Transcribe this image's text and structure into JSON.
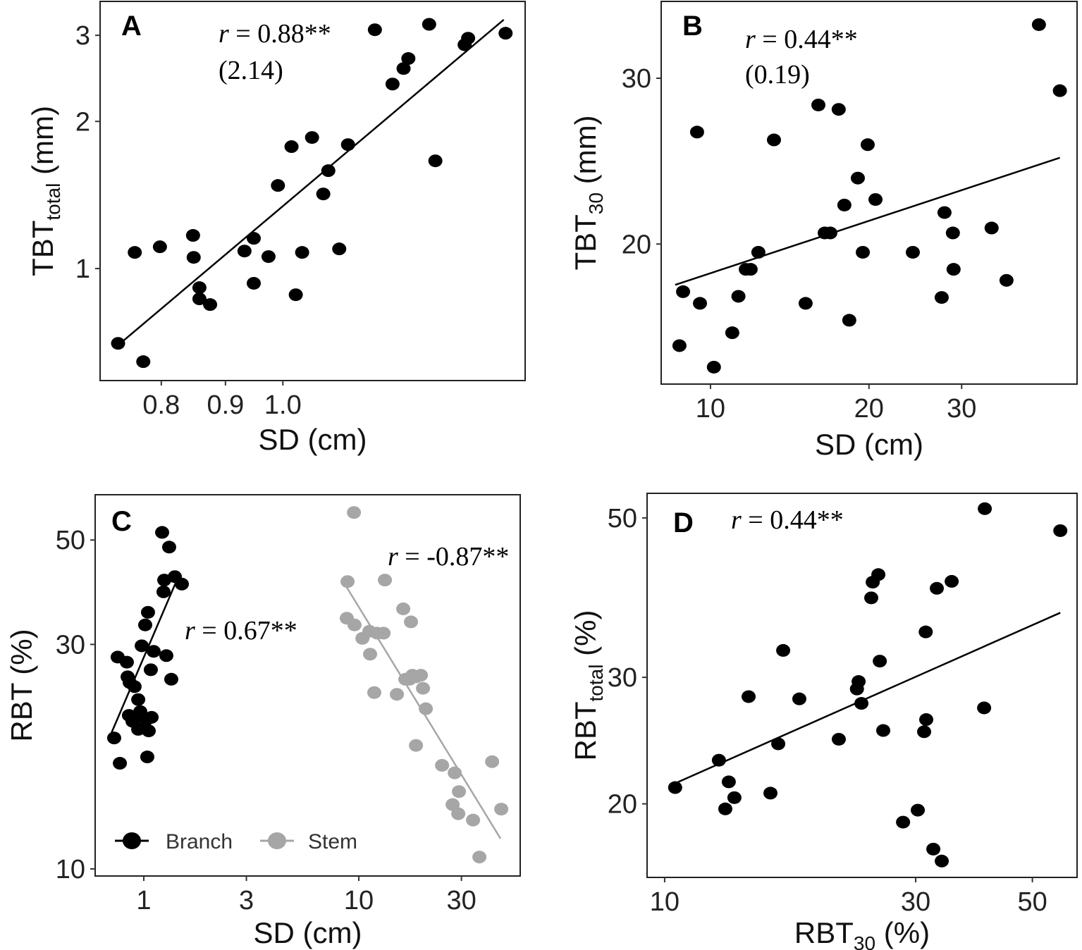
{
  "colors": {
    "branch": "#000000",
    "stem": "#a6a6a6",
    "fit": "#000000"
  },
  "chart_data": [
    {
      "type": "scatter",
      "panel": "A",
      "xscale": "log",
      "yscale": "log",
      "xlabel": "SD (cm)",
      "ylabel": {
        "main": "TBT",
        "sub": "total",
        "unit": " (mm)"
      },
      "xlim": [
        0.715,
        1.56
      ],
      "ylim": [
        0.59,
        3.52
      ],
      "xticks": [
        {
          "v": 0.8,
          "label": "0.8"
        },
        {
          "v": 0.9,
          "label": "0.9"
        },
        {
          "v": 1.0,
          "label": "1.0"
        }
      ],
      "yticks": [
        {
          "v": 1,
          "label": "1"
        },
        {
          "v": 2,
          "label": "2"
        },
        {
          "v": 3,
          "label": "3"
        }
      ],
      "annotations": {
        "r_symbol": "r",
        "r_value": " = 0.88**",
        "extra": "(2.14)"
      },
      "series": [
        {
          "name": "all",
          "color": "#000000",
          "points": [
            [
              0.739,
              0.703
            ],
            [
              0.774,
              0.645
            ],
            [
              0.762,
              1.079
            ],
            [
              0.798,
              1.108
            ],
            [
              0.848,
              1.169
            ],
            [
              0.849,
              1.054
            ],
            [
              0.858,
              0.914
            ],
            [
              0.858,
              0.867
            ],
            [
              0.875,
              0.844
            ],
            [
              0.932,
              1.086
            ],
            [
              0.948,
              1.153
            ],
            [
              0.948,
              0.933
            ],
            [
              0.974,
              1.058
            ],
            [
              0.991,
              1.479
            ],
            [
              1.016,
              1.776
            ],
            [
              1.024,
              0.884
            ],
            [
              1.036,
              1.079
            ],
            [
              1.055,
              1.854
            ],
            [
              1.077,
              1.421
            ],
            [
              1.087,
              1.586
            ],
            [
              1.109,
              1.097
            ],
            [
              1.127,
              1.793
            ],
            [
              1.184,
              3.08
            ],
            [
              1.223,
              2.385
            ],
            [
              1.248,
              2.566
            ],
            [
              1.259,
              2.69
            ],
            [
              1.308,
              3.16
            ],
            [
              1.323,
              1.661
            ],
            [
              1.396,
              2.87
            ],
            [
              1.405,
              2.96
            ],
            [
              1.505,
              3.03
            ]
          ],
          "fit": [
            [
              0.739,
              0.697
            ],
            [
              1.5,
              3.23
            ]
          ]
        }
      ]
    },
    {
      "type": "scatter",
      "panel": "B",
      "xscale": "log",
      "yscale": "log",
      "xlabel": "SD (cm)",
      "ylabel": {
        "main": "TBT",
        "sub": "30",
        "unit": " (mm)"
      },
      "xlim": [
        8.06,
        49.7
      ],
      "ylim": [
        14.2,
        36.2
      ],
      "xticks": [
        {
          "v": 10,
          "label": "10"
        },
        {
          "v": 20,
          "label": "20"
        },
        {
          "v": 30,
          "label": "30"
        }
      ],
      "yticks": [
        {
          "v": 20,
          "label": "20"
        },
        {
          "v": 30,
          "label": "30"
        }
      ],
      "annotations": {
        "r_symbol": "r",
        "r_value": " = 0.44**",
        "extra": "(0.19)"
      },
      "series": [
        {
          "name": "all",
          "color": "#000000",
          "points": [
            [
              8.73,
              15.6
            ],
            [
              8.87,
              17.8
            ],
            [
              9.55,
              17.3
            ],
            [
              9.43,
              26.3
            ],
            [
              10.15,
              14.8
            ],
            [
              11.0,
              16.1
            ],
            [
              11.3,
              17.6
            ],
            [
              11.67,
              18.8
            ],
            [
              11.92,
              18.8
            ],
            [
              12.33,
              19.6
            ],
            [
              13.2,
              25.8
            ],
            [
              15.16,
              17.3
            ],
            [
              16.03,
              28.1
            ],
            [
              16.48,
              20.55
            ],
            [
              16.89,
              20.55
            ],
            [
              17.52,
              27.8
            ],
            [
              17.96,
              22.0
            ],
            [
              18.35,
              16.6
            ],
            [
              19.05,
              23.5
            ],
            [
              19.47,
              19.6
            ],
            [
              19.89,
              25.5
            ],
            [
              20.58,
              22.3
            ],
            [
              24.23,
              19.6
            ],
            [
              27.83,
              21.6
            ],
            [
              27.49,
              17.55
            ],
            [
              28.87,
              20.55
            ],
            [
              28.96,
              18.8
            ],
            [
              34.2,
              20.8
            ],
            [
              36.5,
              18.3
            ],
            [
              42.06,
              34.2
            ],
            [
              46.1,
              29.1
            ]
          ],
          "fit": [
            [
              8.57,
              18.1
            ],
            [
              46.1,
              24.7
            ]
          ]
        }
      ]
    },
    {
      "type": "scatter",
      "panel": "C",
      "xscale": "log",
      "yscale": "log",
      "xlabel": "SD (cm)",
      "ylabel": {
        "main": "RBT",
        "sub": "",
        "unit": " (%)"
      },
      "xlim": [
        0.594,
        56.3
      ],
      "ylim": [
        9.66,
        62.4
      ],
      "xticks": [
        {
          "v": 1,
          "label": "1"
        },
        {
          "v": 3,
          "label": "3"
        },
        {
          "v": 10,
          "label": "10"
        },
        {
          "v": 30,
          "label": "30"
        }
      ],
      "yticks": [
        {
          "v": 10,
          "label": "10"
        },
        {
          "v": 30,
          "label": "30"
        },
        {
          "v": 50,
          "label": "50"
        }
      ],
      "legend": {
        "position": "bottom-left",
        "items": [
          "Branch",
          "Stem"
        ]
      },
      "annotations": {
        "branch_r_symbol": "r",
        "branch_r_value": " = 0.67**",
        "stem_r_symbol": "r",
        "stem_r_value": " = -0.87**"
      },
      "series": [
        {
          "name": "Branch",
          "color": "#000000",
          "points": [
            [
              0.728,
              18.98
            ],
            [
              0.774,
              16.77
            ],
            [
              0.756,
              28.2
            ],
            [
              0.834,
              27.5
            ],
            [
              0.841,
              25.6
            ],
            [
              0.86,
              24.9
            ],
            [
              0.906,
              24.4
            ],
            [
              0.853,
              21.2
            ],
            [
              0.927,
              21.05
            ],
            [
              0.886,
              20.6
            ],
            [
              0.942,
              19.8
            ],
            [
              0.963,
              21.6
            ],
            [
              1.023,
              20.7
            ],
            [
              1.038,
              17.3
            ],
            [
              1.054,
              19.65
            ],
            [
              1.087,
              21.0
            ],
            [
              0.978,
              29.8
            ],
            [
              1.078,
              26.5
            ],
            [
              1.111,
              29.0
            ],
            [
              1.015,
              33.0
            ],
            [
              1.046,
              35.1
            ],
            [
              1.217,
              51.9
            ],
            [
              1.312,
              48.3
            ],
            [
              1.245,
              41.1
            ],
            [
              1.235,
              38.8
            ],
            [
              1.394,
              41.8
            ],
            [
              1.503,
              40.3
            ],
            [
              1.273,
              28.4
            ],
            [
              1.342,
              25.3
            ],
            [
              0.942,
              22.9
            ]
          ],
          "fit": [
            [
              0.707,
              19.45
            ],
            [
              1.447,
              41.8
            ]
          ]
        },
        {
          "name": "Stem",
          "color": "#a6a6a6",
          "points": [
            [
              9.49,
              57.2
            ],
            [
              8.86,
              40.8
            ],
            [
              8.79,
              34.1
            ],
            [
              9.55,
              33.0
            ],
            [
              10.39,
              30.9
            ],
            [
              11.2,
              32.0
            ],
            [
              11.28,
              28.6
            ],
            [
              12.17,
              31.7
            ],
            [
              13.22,
              41.1
            ],
            [
              16.09,
              35.7
            ],
            [
              17.48,
              33.5
            ],
            [
              11.8,
              23.7
            ],
            [
              15.03,
              23.5
            ],
            [
              16.46,
              25.3
            ],
            [
              17.75,
              25.8
            ],
            [
              18.44,
              25.6
            ],
            [
              19.44,
              25.8
            ],
            [
              19.88,
              24.2
            ],
            [
              20.49,
              21.9
            ],
            [
              18.44,
              18.3
            ],
            [
              24.38,
              16.6
            ],
            [
              27.92,
              16.0
            ],
            [
              29.21,
              14.6
            ],
            [
              27.3,
              13.7
            ],
            [
              29.0,
              13.1
            ],
            [
              33.97,
              12.7
            ],
            [
              36.37,
              10.6
            ],
            [
              41.67,
              16.9
            ],
            [
              45.95,
              13.4
            ],
            [
              13.03,
              31.7
            ],
            [
              17.22,
              25.3
            ]
          ],
          "fit": [
            [
              8.66,
              40.1
            ],
            [
              45.6,
              11.6
            ]
          ]
        }
      ]
    },
    {
      "type": "scatter",
      "panel": "D",
      "xscale": "log",
      "yscale": "log",
      "xlabel": {
        "main": "RBT",
        "sub": "30",
        "unit": " (%)"
      },
      "ylabel": {
        "main": "RBT",
        "sub": "total",
        "unit": " (%)"
      },
      "xlim": [
        9.26,
        60.8
      ],
      "ylim": [
        15.8,
        54.1
      ],
      "xticks": [
        {
          "v": 10,
          "label": "10"
        },
        {
          "v": 30,
          "label": "30"
        },
        {
          "v": 50,
          "label": "50"
        }
      ],
      "yticks": [
        {
          "v": 20,
          "label": "20"
        },
        {
          "v": 30,
          "label": "30"
        },
        {
          "v": 50,
          "label": "50"
        }
      ],
      "annotations": {
        "r_symbol": "r",
        "r_value": " = 0.44**"
      },
      "series": [
        {
          "name": "all",
          "color": "#000000",
          "points": [
            [
              10.47,
              21.07
            ],
            [
              12.68,
              23.0
            ],
            [
              13.24,
              21.46
            ],
            [
              13.57,
              20.4
            ],
            [
              13.04,
              19.68
            ],
            [
              14.44,
              28.2
            ],
            [
              15.89,
              20.7
            ],
            [
              16.44,
              24.24
            ],
            [
              16.8,
              32.7
            ],
            [
              18.03,
              28.0
            ],
            [
              21.43,
              24.6
            ],
            [
              23.2,
              28.9
            ],
            [
              23.37,
              29.6
            ],
            [
              23.66,
              27.6
            ],
            [
              24.7,
              38.7
            ],
            [
              24.86,
              40.7
            ],
            [
              25.48,
              41.7
            ],
            [
              25.64,
              31.6
            ],
            [
              26.03,
              25.3
            ],
            [
              28.39,
              18.86
            ],
            [
              30.28,
              19.6
            ],
            [
              31.13,
              25.2
            ],
            [
              31.42,
              26.2
            ],
            [
              31.35,
              34.7
            ],
            [
              32.91,
              39.9
            ],
            [
              32.41,
              17.3
            ],
            [
              33.63,
              16.65
            ],
            [
              35.12,
              40.8
            ],
            [
              40.48,
              27.2
            ],
            [
              40.6,
              51.5
            ],
            [
              56.5,
              48.0
            ]
          ],
          "fit": [
            [
              10.38,
              21.3
            ],
            [
              56.5,
              36.9
            ]
          ]
        }
      ]
    }
  ]
}
